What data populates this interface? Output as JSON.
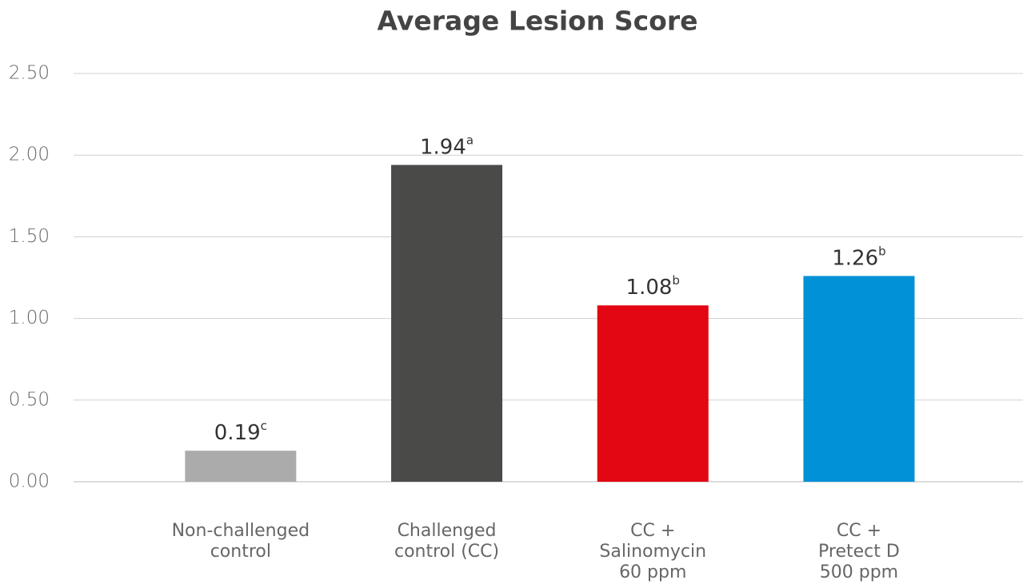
{
  "chart_data": {
    "type": "bar",
    "title": "Average Lesion Score",
    "categories": [
      [
        "Non-challenged",
        "control"
      ],
      [
        "Challenged",
        "control (CC)"
      ],
      [
        "CC +",
        "Salinomycin",
        "60 ppm"
      ],
      [
        "CC +",
        "Pretect D",
        "500 ppm"
      ]
    ],
    "values": [
      0.19,
      1.94,
      1.08,
      1.26
    ],
    "superscripts": [
      "c",
      "a",
      "b",
      "b"
    ],
    "colors": [
      "#ababab",
      "#4a4a49",
      "#e30613",
      "#0091d6"
    ],
    "ylim": [
      0,
      2.5
    ],
    "yticks": [
      {
        "value": 0,
        "label": "0.00"
      },
      {
        "value": 0.5,
        "label": "0.50"
      },
      {
        "value": 1,
        "label": "1.00"
      },
      {
        "value": 1.5,
        "label": "1.50"
      },
      {
        "value": 2,
        "label": "2.00"
      },
      {
        "value": 2.5,
        "label": "2.50"
      }
    ],
    "grid": true
  }
}
